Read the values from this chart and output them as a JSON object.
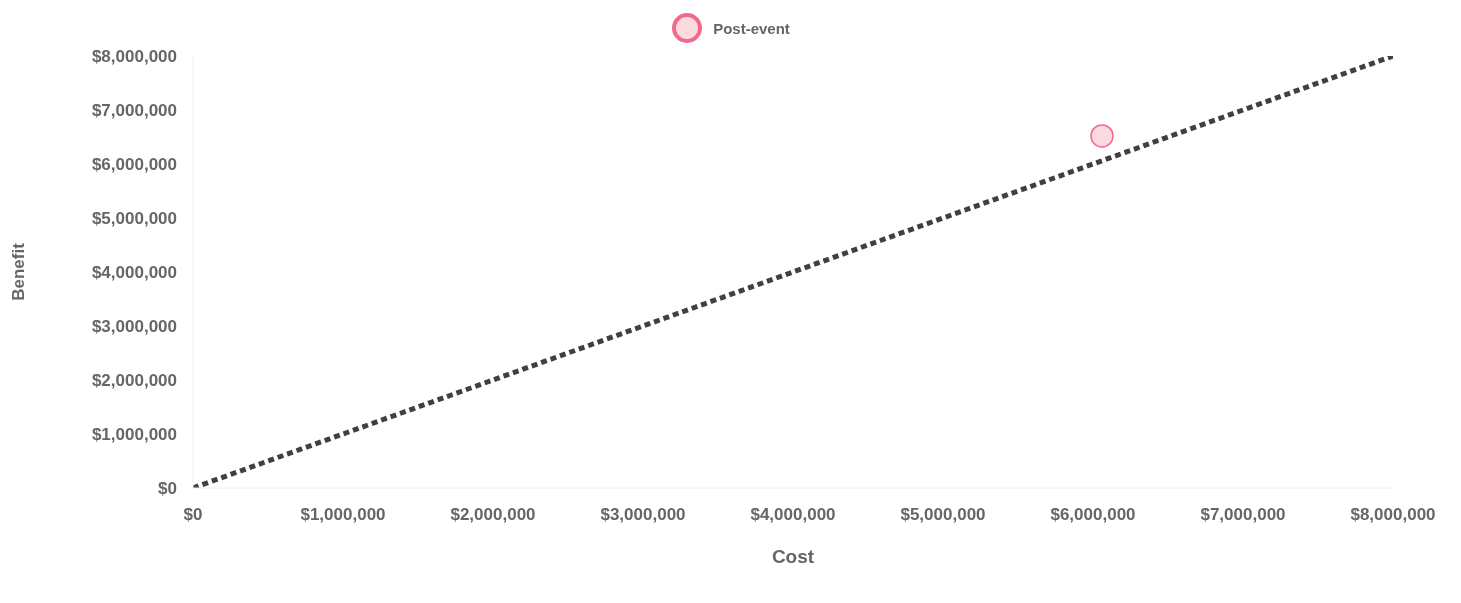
{
  "chart_data": {
    "type": "scatter",
    "xlabel": "Cost",
    "ylabel": "Benefit",
    "series": [
      {
        "name": "Post-event",
        "color": "#f06a8a",
        "x": [
          6060000
        ],
        "values": [
          6520000
        ],
        "marker": "circle"
      },
      {
        "type": "line",
        "color": "#404040",
        "x": [
          0,
          8000000
        ],
        "values": [
          0,
          8000000
        ],
        "line_style": "dashed",
        "marker": "none"
      }
    ],
    "xlim": [
      0,
      8000000
    ],
    "ylim": [
      0,
      8000000
    ],
    "xticks": [
      {
        "value": 0,
        "label": "$0"
      },
      {
        "value": 1000000,
        "label": "$1,000,000"
      },
      {
        "value": 2000000,
        "label": "$2,000,000"
      },
      {
        "value": 3000000,
        "label": "$3,000,000"
      },
      {
        "value": 4000000,
        "label": "$4,000,000"
      },
      {
        "value": 5000000,
        "label": "$5,000,000"
      },
      {
        "value": 6000000,
        "label": "$6,000,000"
      },
      {
        "value": 7000000,
        "label": "$7,000,000"
      },
      {
        "value": 8000000,
        "label": "$8,000,000"
      }
    ],
    "yticks": [
      {
        "value": 0,
        "label": "$0"
      },
      {
        "value": 1000000,
        "label": "$1,000,000"
      },
      {
        "value": 2000000,
        "label": "$2,000,000"
      },
      {
        "value": 3000000,
        "label": "$3,000,000"
      },
      {
        "value": 4000000,
        "label": "$4,000,000"
      },
      {
        "value": 5000000,
        "label": "$5,000,000"
      },
      {
        "value": 6000000,
        "label": "$6,000,000"
      },
      {
        "value": 7000000,
        "label": "$7,000,000"
      },
      {
        "value": 8000000,
        "label": "$8,000,000"
      }
    ],
    "grid": false,
    "legend": "top"
  }
}
